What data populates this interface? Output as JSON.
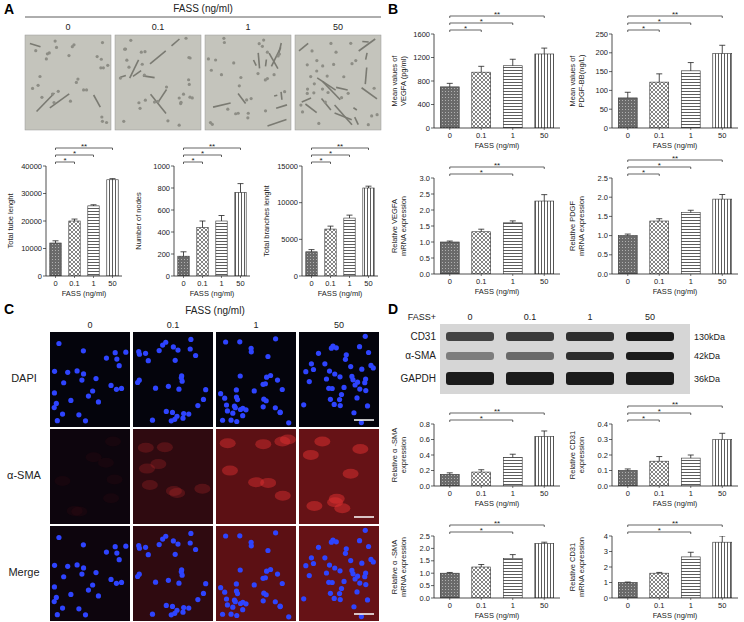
{
  "figure": {
    "panel_labels": [
      "A",
      "B",
      "C",
      "D"
    ],
    "panel_a": {
      "title": "FASS (ng/ml)",
      "conditions": [
        "0",
        "0.1",
        "1",
        "50"
      ]
    },
    "panel_c": {
      "title": "FASS (ng/ml)",
      "conditions": [
        "0",
        "0.1",
        "1",
        "50"
      ],
      "rows": [
        "DAPI",
        "α-SMA",
        "Merge"
      ]
    },
    "panel_d_blot": {
      "treatment": "FASS+",
      "lanes": [
        "0",
        "0.1",
        "1",
        "50"
      ],
      "bands": [
        {
          "name": "CD31",
          "size": "130kDa"
        },
        {
          "name": "α-SMA",
          "size": "42kDa"
        },
        {
          "name": "GAPDH",
          "size": "36kDa"
        }
      ]
    }
  },
  "chart_data": [
    {
      "type": "bar",
      "x_label": "FASS (ng/ml)",
      "y_label": "Total tube lenght",
      "categories": [
        "0",
        "0.1",
        "1",
        "50"
      ],
      "values": [
        12000,
        20000,
        25500,
        35000
      ],
      "errors": [
        800,
        700,
        400,
        400
      ],
      "ylim": [
        0,
        40000
      ],
      "yticks": [
        0,
        10000,
        20000,
        30000,
        40000
      ],
      "significance": [
        {
          "groups": [
            "0",
            "0.1"
          ],
          "label": "*"
        },
        {
          "groups": [
            "0",
            "1"
          ],
          "label": "*"
        },
        {
          "groups": [
            "0",
            "50"
          ],
          "label": "**"
        }
      ]
    },
    {
      "type": "bar",
      "x_label": "FASS (ng/ml)",
      "y_label": "Number of nodes",
      "categories": [
        "0",
        "0.1",
        "1",
        "50"
      ],
      "values": [
        180,
        440,
        500,
        760
      ],
      "errors": [
        40,
        60,
        50,
        80
      ],
      "ylim": [
        0,
        1000
      ],
      "yticks": [
        0,
        200,
        400,
        600,
        800,
        1000
      ],
      "significance": [
        {
          "groups": [
            "0",
            "0.1"
          ],
          "label": "*"
        },
        {
          "groups": [
            "0",
            "1"
          ],
          "label": "*"
        },
        {
          "groups": [
            "0",
            "50"
          ],
          "label": "**"
        }
      ]
    },
    {
      "type": "bar",
      "x_label": "FASS (ng/ml)",
      "y_label": "Total branches lenght",
      "categories": [
        "0",
        "0.1",
        "1",
        "50"
      ],
      "values": [
        3300,
        6400,
        7900,
        12000
      ],
      "errors": [
        300,
        400,
        400,
        250
      ],
      "ylim": [
        0,
        15000
      ],
      "yticks": [
        0,
        5000,
        10000,
        15000
      ],
      "significance": [
        {
          "groups": [
            "0",
            "0.1"
          ],
          "label": "*"
        },
        {
          "groups": [
            "0",
            "1"
          ],
          "label": "*"
        },
        {
          "groups": [
            "0",
            "50"
          ],
          "label": "**"
        }
      ]
    },
    {
      "type": "bar",
      "x_label": "FASS (ng/ml)",
      "y_label": "Mean values of VEGFA (pg/ml)",
      "categories": [
        "0",
        "0.1",
        "1",
        "50"
      ],
      "values": [
        700,
        950,
        1060,
        1260
      ],
      "errors": [
        60,
        100,
        110,
        100
      ],
      "ylim": [
        0,
        1600
      ],
      "yticks": [
        0,
        400,
        800,
        1200,
        1600
      ],
      "significance": [
        {
          "groups": [
            "0",
            "0.1"
          ],
          "label": "*"
        },
        {
          "groups": [
            "0",
            "1"
          ],
          "label": "*"
        },
        {
          "groups": [
            "0",
            "50"
          ],
          "label": "**"
        }
      ]
    },
    {
      "type": "bar",
      "x_label": "FASS (ng/ml)",
      "y_label": "Mean values of PDGF-BB(ng/L)",
      "categories": [
        "0",
        "0.1",
        "1",
        "50"
      ],
      "values": [
        80,
        122,
        152,
        198
      ],
      "errors": [
        15,
        22,
        22,
        22
      ],
      "ylim": [
        0,
        250
      ],
      "yticks": [
        0,
        50,
        100,
        150,
        200,
        250
      ],
      "significance": [
        {
          "groups": [
            "0",
            "0.1"
          ],
          "label": "*"
        },
        {
          "groups": [
            "0",
            "1"
          ],
          "label": "*"
        },
        {
          "groups": [
            "0",
            "50"
          ],
          "label": "**"
        }
      ]
    },
    {
      "type": "bar",
      "x_label": "FASS (ng/ml)",
      "y_label": "Relative VEGFA mRNA expression",
      "categories": [
        "0",
        "0.1",
        "1",
        "50"
      ],
      "values": [
        1.0,
        1.32,
        1.6,
        2.28
      ],
      "errors": [
        0.03,
        0.08,
        0.06,
        0.2
      ],
      "ylim": [
        0,
        3
      ],
      "yticks": [
        {
          "value": 0,
          "label": "0.0"
        },
        0.5,
        {
          "value": 1,
          "label": "1.0"
        },
        1.5,
        {
          "value": 2,
          "label": "2.0"
        },
        2.5,
        {
          "value": 3,
          "label": "3.0"
        }
      ],
      "significance": [
        {
          "groups": [
            "0",
            "1"
          ],
          "label": "*"
        },
        {
          "groups": [
            "0",
            "50"
          ],
          "label": "**"
        }
      ]
    },
    {
      "type": "bar",
      "x_label": "FASS (ng/ml)",
      "y_label": "Relative PDGF mRNA expression",
      "categories": [
        "0",
        "0.1",
        "1",
        "50"
      ],
      "values": [
        1.0,
        1.38,
        1.6,
        1.95
      ],
      "errors": [
        0.04,
        0.06,
        0.06,
        0.12
      ],
      "ylim": [
        0,
        2.5
      ],
      "yticks": [
        {
          "value": 0,
          "label": "0.0"
        },
        0.5,
        {
          "value": 1,
          "label": "1.0"
        },
        1.5,
        {
          "value": 2,
          "label": "2.0"
        },
        2.5
      ],
      "significance": [
        {
          "groups": [
            "0",
            "0.1"
          ],
          "label": "*"
        },
        {
          "groups": [
            "0",
            "1"
          ],
          "label": "*"
        },
        {
          "groups": [
            "0",
            "50"
          ],
          "label": "**"
        }
      ]
    },
    {
      "type": "bar",
      "x_label": "FASS (ng/ml)",
      "y_label": "Relative α -SMA expression",
      "categories": [
        "0",
        "0.1",
        "1",
        "50"
      ],
      "values": [
        0.15,
        0.18,
        0.37,
        0.64
      ],
      "errors": [
        0.02,
        0.03,
        0.04,
        0.07
      ],
      "ylim": [
        0,
        0.8
      ],
      "yticks": [
        {
          "value": 0,
          "label": "0.0"
        },
        0.2,
        0.4,
        0.6,
        0.8
      ],
      "significance": [
        {
          "groups": [
            "0",
            "1"
          ],
          "label": "*"
        },
        {
          "groups": [
            "0",
            "50"
          ],
          "label": "**"
        }
      ]
    },
    {
      "type": "bar",
      "x_label": "FASS (ng/ml)",
      "y_label": "Relative CD31 expression",
      "categories": [
        "0",
        "0.1",
        "1",
        "50"
      ],
      "values": [
        0.1,
        0.16,
        0.18,
        0.3
      ],
      "errors": [
        0.01,
        0.03,
        0.02,
        0.04
      ],
      "ylim": [
        0,
        0.4
      ],
      "yticks": [
        {
          "value": 0,
          "label": "0.0"
        },
        0.1,
        0.2,
        0.3,
        0.4
      ],
      "significance": [
        {
          "groups": [
            "0",
            "0.1"
          ],
          "label": "*"
        },
        {
          "groups": [
            "0",
            "1"
          ],
          "label": "*"
        },
        {
          "groups": [
            "0",
            "50"
          ],
          "label": "**"
        }
      ]
    },
    {
      "type": "bar",
      "x_label": "FASS (ng/ml)",
      "y_label": "Relative α -SMA mRNA expression",
      "categories": [
        "0",
        "0.1",
        "1",
        "50"
      ],
      "values": [
        1.0,
        1.25,
        1.6,
        2.2
      ],
      "errors": [
        0.03,
        0.1,
        0.15,
        0.05
      ],
      "ylim": [
        0,
        2.5
      ],
      "yticks": [
        {
          "value": 0,
          "label": "0.0"
        },
        0.5,
        {
          "value": 1,
          "label": "1.0"
        },
        1.5,
        {
          "value": 2,
          "label": "2.0"
        },
        2.5
      ],
      "significance": [
        {
          "groups": [
            "0",
            "1"
          ],
          "label": "*"
        },
        {
          "groups": [
            "0",
            "50"
          ],
          "label": "**"
        }
      ]
    },
    {
      "type": "bar",
      "x_label": "FASS (ng/ml)",
      "y_label": "Relative CD31 mRNA expression",
      "categories": [
        "0",
        "0.1",
        "1",
        "50"
      ],
      "values": [
        1.0,
        1.6,
        2.65,
        3.6
      ],
      "errors": [
        0.03,
        0.05,
        0.3,
        0.4
      ],
      "ylim": [
        0,
        4
      ],
      "yticks": [
        0,
        1,
        2,
        3,
        4
      ],
      "significance": [
        {
          "groups": [
            "0",
            "1"
          ],
          "label": "*"
        },
        {
          "groups": [
            "0",
            "50"
          ],
          "label": "**"
        }
      ]
    }
  ]
}
